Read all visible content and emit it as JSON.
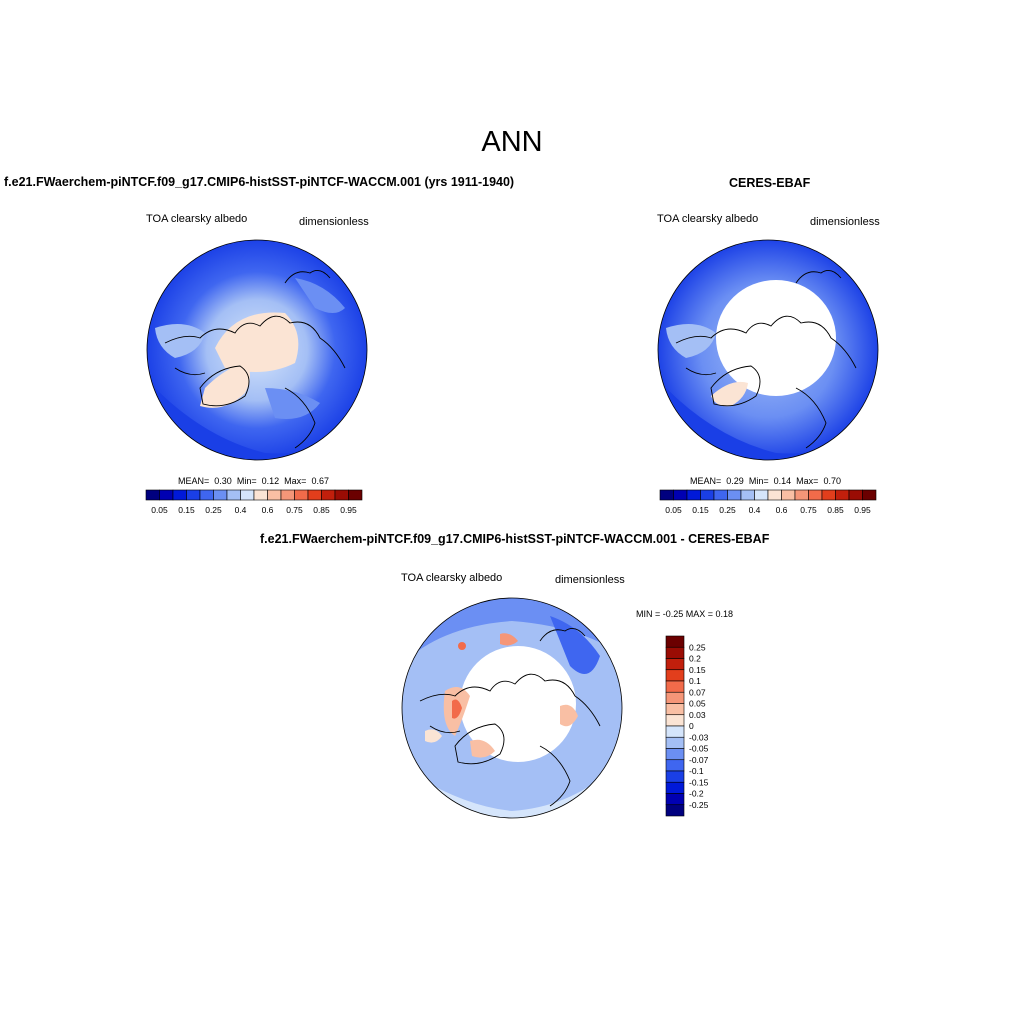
{
  "title": "ANN",
  "palette_abs": [
    "#00007f",
    "#0000b2",
    "#0019d9",
    "#1a3fe6",
    "#3f66f0",
    "#6b8ff3",
    "#a4bff5",
    "#d5e5fb",
    "#fbe4d4",
    "#f9bfa4",
    "#f59678",
    "#f26b4a",
    "#e23e1c",
    "#c11f0c",
    "#9a0c04",
    "#6b0000"
  ],
  "palette_diff": [
    "#00007f",
    "#0000b2",
    "#0019d9",
    "#1a3fe6",
    "#3f66f0",
    "#6b8ff3",
    "#a4bff5",
    "#d5e5fb",
    "#fbe4d4",
    "#f9bfa4",
    "#f59678",
    "#f26b4a",
    "#e23e1c",
    "#c11f0c",
    "#9a0c04",
    "#6b0000"
  ],
  "panels": {
    "model": {
      "title": "f.e21.FWaerchem-piNTCF.f09_g17.CMIP6-histSST-piNTCF-WACCM.001 (yrs 1911-1940)",
      "variable": "TOA clearsky albedo",
      "units": "dimensionless",
      "stats": {
        "mean_label": "MEAN=",
        "mean": "0.30",
        "min_label": "Min=",
        "min": "0.12",
        "max_label": "Max=",
        "max": "0.67"
      },
      "colorbar_ticks": [
        "0.05",
        "0.15",
        "0.25",
        "0.4",
        "0.6",
        "0.75",
        "0.85",
        "0.95"
      ]
    },
    "obs": {
      "title": "CERES-EBAF",
      "variable": "TOA clearsky albedo",
      "units": "dimensionless",
      "stats": {
        "mean_label": "MEAN=",
        "mean": "0.29",
        "min_label": "Min=",
        "min": "0.14",
        "max_label": "Max=",
        "max": "0.70"
      },
      "colorbar_ticks": [
        "0.05",
        "0.15",
        "0.25",
        "0.4",
        "0.6",
        "0.75",
        "0.85",
        "0.95"
      ]
    },
    "diff": {
      "title": "f.e21.FWaerchem-piNTCF.f09_g17.CMIP6-histSST-piNTCF-WACCM.001 - CERES-EBAF",
      "variable": "TOA clearsky albedo",
      "units": "dimensionless",
      "range_text": "MIN =  -0.25 MAX =   0.18",
      "colorbar_ticks": [
        "0.25",
        "0.2",
        "0.15",
        "0.1",
        "0.07",
        "0.05",
        "0.03",
        "0",
        "-0.03",
        "-0.05",
        "-0.07",
        "-0.1",
        "-0.15",
        "-0.2",
        "-0.25"
      ]
    }
  }
}
